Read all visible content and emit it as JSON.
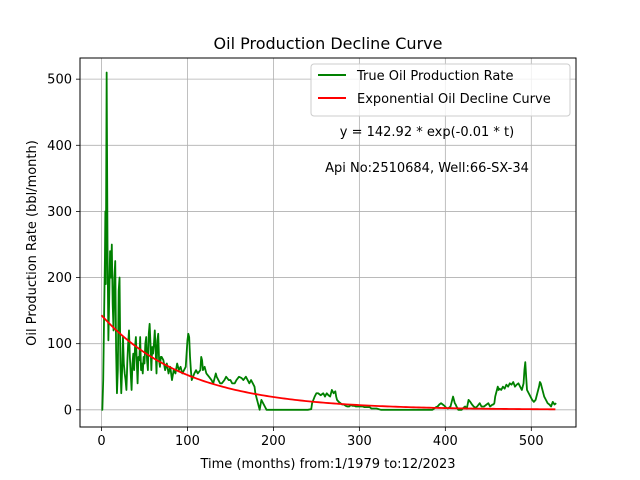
{
  "chart_data": {
    "type": "line",
    "title": "Oil Production Decline Curve",
    "xlabel": "Time (months) from:1/1979 to:12/2023",
    "ylabel": "Oil Production Rate (bbl/month)",
    "xlim": [
      -25,
      552
    ],
    "ylim": [
      -26,
      532
    ],
    "xticks": [
      0,
      100,
      200,
      300,
      400,
      500
    ],
    "yticks": [
      0,
      100,
      200,
      300,
      400,
      500
    ],
    "grid": true,
    "legend_position": "top-right",
    "annotations": [
      {
        "text": "y = 142.92 * exp(-0.01 * t)"
      },
      {
        "text": "Api No:2510684, Well:66-SX-34"
      }
    ],
    "series": [
      {
        "name": "True Oil Production Rate",
        "color": "#008000",
        "style": "solid",
        "points": [
          [
            0,
            0
          ],
          [
            1,
            0
          ],
          [
            2,
            45
          ],
          [
            3,
            140
          ],
          [
            4,
            230
          ],
          [
            4.5,
            300
          ],
          [
            5,
            190
          ],
          [
            6,
            510
          ],
          [
            7,
            250
          ],
          [
            8,
            105
          ],
          [
            9,
            170
          ],
          [
            10,
            240
          ],
          [
            11,
            200
          ],
          [
            12,
            250
          ],
          [
            13,
            160
          ],
          [
            14,
            120
          ],
          [
            15,
            200
          ],
          [
            16,
            225
          ],
          [
            17,
            90
          ],
          [
            18,
            25
          ],
          [
            19,
            60
          ],
          [
            20,
            180
          ],
          [
            21,
            200
          ],
          [
            22,
            70
          ],
          [
            23,
            25
          ],
          [
            24,
            60
          ],
          [
            25,
            110
          ],
          [
            26,
            70
          ],
          [
            27,
            55
          ],
          [
            28,
            45
          ],
          [
            29,
            30
          ],
          [
            30,
            70
          ],
          [
            31,
            100
          ],
          [
            32,
            120
          ],
          [
            33,
            80
          ],
          [
            34,
            55
          ],
          [
            35,
            30
          ],
          [
            36,
            70
          ],
          [
            37,
            85
          ],
          [
            38,
            60
          ],
          [
            39,
            95
          ],
          [
            40,
            110
          ],
          [
            41,
            75
          ],
          [
            42,
            40
          ],
          [
            43,
            80
          ],
          [
            44,
            75
          ],
          [
            45,
            110
          ],
          [
            46,
            60
          ],
          [
            47,
            70
          ],
          [
            48,
            55
          ],
          [
            49,
            80
          ],
          [
            50,
            70
          ],
          [
            51,
            100
          ],
          [
            52,
            110
          ],
          [
            53,
            75
          ],
          [
            54,
            60
          ],
          [
            55,
            115
          ],
          [
            56,
            130
          ],
          [
            57,
            100
          ],
          [
            58,
            60
          ],
          [
            59,
            95
          ],
          [
            60,
            85
          ],
          [
            61,
            100
          ],
          [
            62,
            120
          ],
          [
            63,
            90
          ],
          [
            64,
            55
          ],
          [
            65,
            105
          ],
          [
            66,
            115
          ],
          [
            67,
            75
          ],
          [
            68,
            65
          ],
          [
            69,
            80
          ],
          [
            70,
            80
          ],
          [
            72,
            75
          ],
          [
            74,
            60
          ],
          [
            76,
            70
          ],
          [
            78,
            55
          ],
          [
            80,
            65
          ],
          [
            82,
            45
          ],
          [
            84,
            60
          ],
          [
            86,
            55
          ],
          [
            88,
            70
          ],
          [
            90,
            60
          ],
          [
            92,
            65
          ],
          [
            94,
            55
          ],
          [
            96,
            60
          ],
          [
            98,
            65
          ],
          [
            100,
            105
          ],
          [
            101,
            115
          ],
          [
            102,
            110
          ],
          [
            103,
            80
          ],
          [
            104,
            60
          ],
          [
            105,
            45
          ],
          [
            108,
            55
          ],
          [
            110,
            60
          ],
          [
            112,
            55
          ],
          [
            115,
            60
          ],
          [
            116,
            80
          ],
          [
            117,
            75
          ],
          [
            118,
            60
          ],
          [
            120,
            65
          ],
          [
            122,
            55
          ],
          [
            125,
            50
          ],
          [
            128,
            45
          ],
          [
            130,
            40
          ],
          [
            133,
            55
          ],
          [
            134,
            50
          ],
          [
            136,
            45
          ],
          [
            138,
            40
          ],
          [
            140,
            40
          ],
          [
            143,
            45
          ],
          [
            145,
            50
          ],
          [
            148,
            45
          ],
          [
            150,
            45
          ],
          [
            152,
            40
          ],
          [
            155,
            40
          ],
          [
            157,
            45
          ],
          [
            160,
            50
          ],
          [
            163,
            48
          ],
          [
            165,
            45
          ],
          [
            168,
            50
          ],
          [
            170,
            45
          ],
          [
            172,
            40
          ],
          [
            174,
            45
          ],
          [
            176,
            40
          ],
          [
            178,
            35
          ],
          [
            179,
            25
          ],
          [
            180,
            20
          ],
          [
            181,
            15
          ],
          [
            182,
            10
          ],
          [
            183,
            5
          ],
          [
            184,
            0
          ],
          [
            186,
            15
          ],
          [
            188,
            10
          ],
          [
            190,
            5
          ],
          [
            192,
            0
          ],
          [
            200,
            0
          ],
          [
            210,
            0
          ],
          [
            220,
            0
          ],
          [
            230,
            0
          ],
          [
            240,
            0
          ],
          [
            244,
            1
          ],
          [
            245,
            10
          ],
          [
            248,
            20
          ],
          [
            250,
            25
          ],
          [
            252,
            25
          ],
          [
            255,
            22
          ],
          [
            258,
            25
          ],
          [
            260,
            20
          ],
          [
            262,
            25
          ],
          [
            264,
            22
          ],
          [
            266,
            20
          ],
          [
            268,
            30
          ],
          [
            270,
            25
          ],
          [
            272,
            28
          ],
          [
            273,
            20
          ],
          [
            274,
            15
          ],
          [
            276,
            12
          ],
          [
            278,
            10
          ],
          [
            280,
            8
          ],
          [
            282,
            8
          ],
          [
            284,
            6
          ],
          [
            286,
            5
          ],
          [
            288,
            5
          ],
          [
            290,
            7
          ],
          [
            292,
            6
          ],
          [
            294,
            6
          ],
          [
            296,
            5
          ],
          [
            298,
            5
          ],
          [
            300,
            5
          ],
          [
            302,
            5
          ],
          [
            304,
            5
          ],
          [
            306,
            4
          ],
          [
            308,
            4
          ],
          [
            310,
            4
          ],
          [
            312,
            4
          ],
          [
            314,
            2
          ],
          [
            316,
            2
          ],
          [
            318,
            2
          ],
          [
            320,
            2
          ],
          [
            325,
            0
          ],
          [
            330,
            0
          ],
          [
            340,
            0
          ],
          [
            350,
            0
          ],
          [
            360,
            0
          ],
          [
            370,
            0
          ],
          [
            380,
            0
          ],
          [
            385,
            0
          ],
          [
            387,
            2
          ],
          [
            389,
            4
          ],
          [
            391,
            5
          ],
          [
            393,
            8
          ],
          [
            395,
            10
          ],
          [
            397,
            8
          ],
          [
            399,
            6
          ],
          [
            401,
            3
          ],
          [
            403,
            2
          ],
          [
            405,
            4
          ],
          [
            406,
            5
          ],
          [
            407,
            10
          ],
          [
            408,
            15
          ],
          [
            409,
            20
          ],
          [
            410,
            15
          ],
          [
            411,
            10
          ],
          [
            412,
            8
          ],
          [
            413,
            5
          ],
          [
            414,
            3
          ],
          [
            415,
            0
          ],
          [
            417,
            0
          ],
          [
            419,
            0
          ],
          [
            421,
            3
          ],
          [
            423,
            5
          ],
          [
            425,
            2
          ],
          [
            427,
            15
          ],
          [
            429,
            12
          ],
          [
            431,
            8
          ],
          [
            433,
            5
          ],
          [
            435,
            3
          ],
          [
            437,
            5
          ],
          [
            440,
            10
          ],
          [
            442,
            5
          ],
          [
            445,
            5
          ],
          [
            448,
            8
          ],
          [
            450,
            10
          ],
          [
            452,
            5
          ],
          [
            455,
            8
          ],
          [
            456,
            8
          ],
          [
            457,
            10
          ],
          [
            458,
            20
          ],
          [
            459,
            25
          ],
          [
            460,
            30
          ],
          [
            461,
            35
          ],
          [
            462,
            30
          ],
          [
            463,
            32
          ],
          [
            465,
            30
          ],
          [
            467,
            35
          ],
          [
            469,
            32
          ],
          [
            471,
            38
          ],
          [
            473,
            35
          ],
          [
            475,
            40
          ],
          [
            477,
            38
          ],
          [
            479,
            42
          ],
          [
            481,
            35
          ],
          [
            483,
            38
          ],
          [
            485,
            40
          ],
          [
            487,
            35
          ],
          [
            489,
            30
          ],
          [
            491,
            40
          ],
          [
            492,
            60
          ],
          [
            493,
            72
          ],
          [
            494,
            50
          ],
          [
            495,
            30
          ],
          [
            497,
            25
          ],
          [
            499,
            20
          ],
          [
            501,
            15
          ],
          [
            503,
            12
          ],
          [
            505,
            15
          ],
          [
            507,
            25
          ],
          [
            509,
            35
          ],
          [
            510,
            42
          ],
          [
            511,
            40
          ],
          [
            513,
            30
          ],
          [
            515,
            20
          ],
          [
            517,
            15
          ],
          [
            519,
            10
          ],
          [
            521,
            8
          ],
          [
            523,
            5
          ],
          [
            525,
            12
          ],
          [
            527,
            8
          ],
          [
            529,
            10
          ]
        ]
      },
      {
        "name": "Exponential Oil Decline Curve",
        "color": "#ff0000",
        "style": "solid",
        "equation": {
          "a": 142.92,
          "b": 0.01,
          "t_start": 0,
          "t_end": 529
        }
      }
    ]
  }
}
